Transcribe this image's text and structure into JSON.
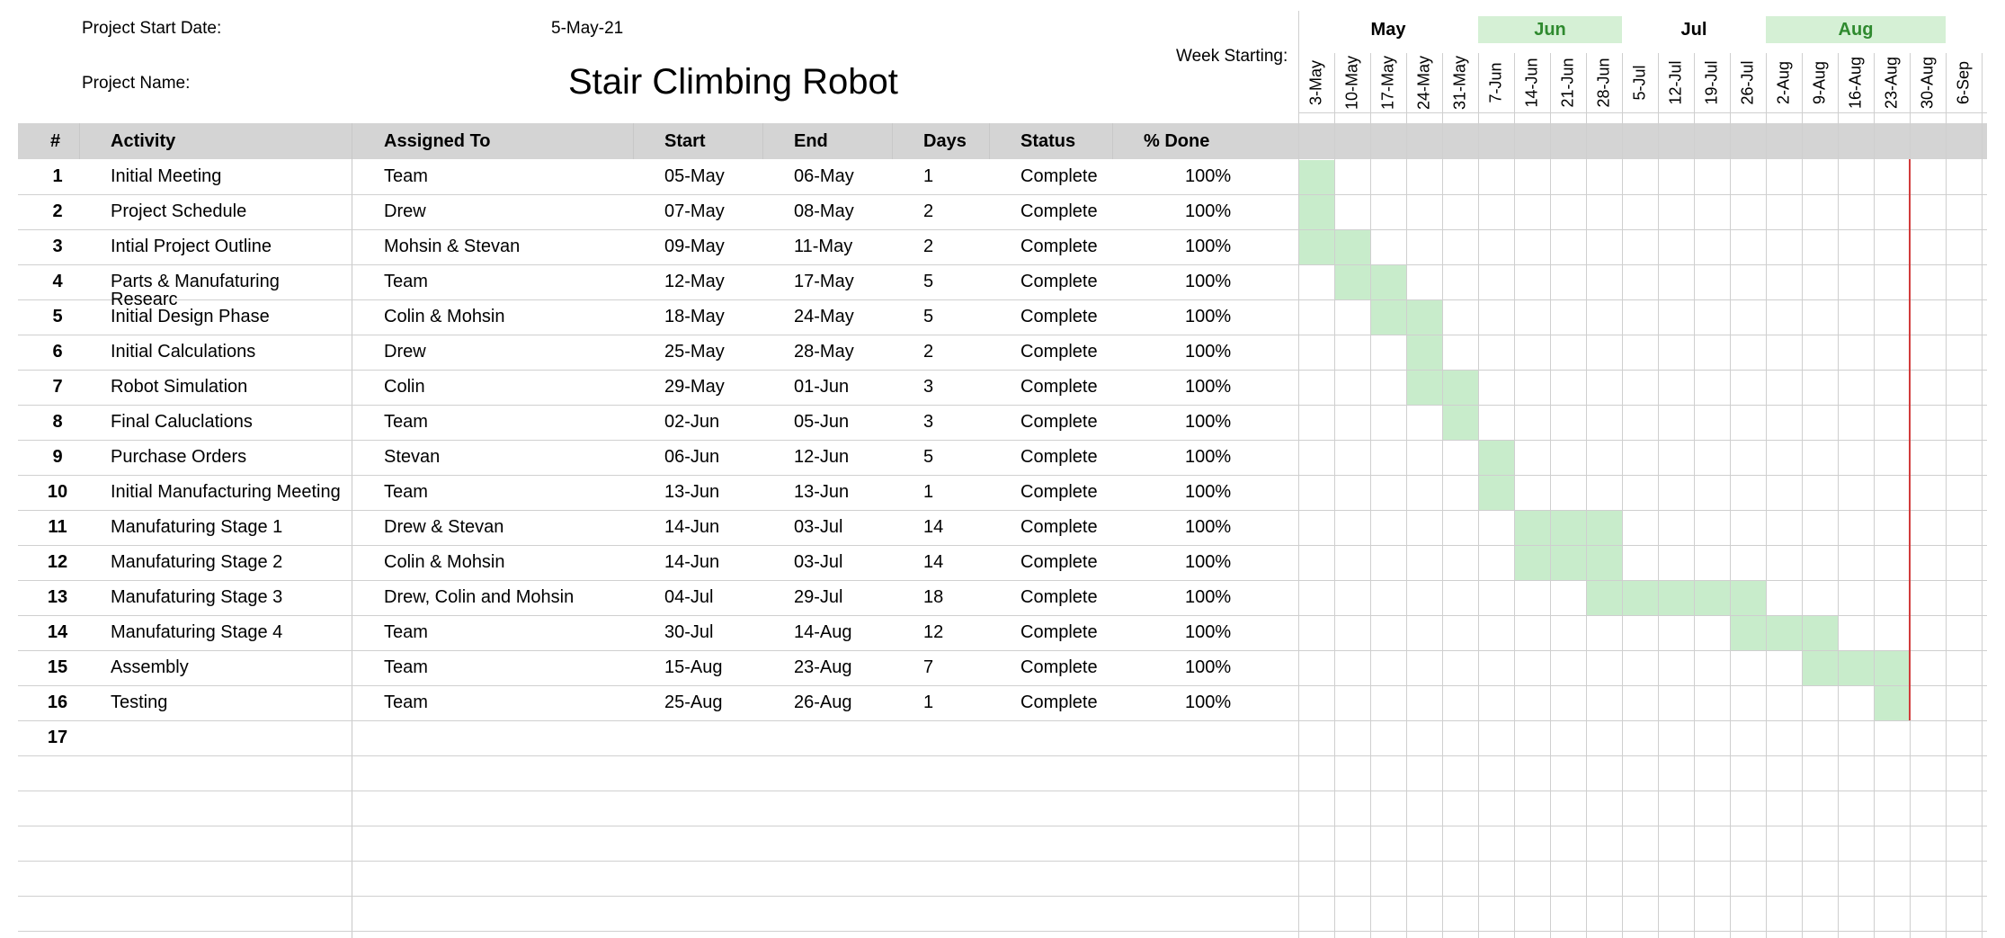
{
  "project": {
    "start_label": "Project Start Date:",
    "start_value": "5-May-21",
    "name_label": "Project Name:",
    "name_value": "Stair Climbing Robot",
    "week_label": "Week Starting:"
  },
  "columns": [
    "#",
    "Activity",
    "Assigned To",
    "Start",
    "End",
    "Days",
    "Status",
    "% Done"
  ],
  "months": [
    {
      "label": "May",
      "highlight": false
    },
    {
      "label": "Jun",
      "highlight": true
    },
    {
      "label": "Jul",
      "highlight": false
    },
    {
      "label": "Aug",
      "highlight": true
    }
  ],
  "weeks": [
    "3-May",
    "10-May",
    "17-May",
    "24-May",
    "31-May",
    "7-Jun",
    "14-Jun",
    "21-Jun",
    "28-Jun",
    "5-Jul",
    "12-Jul",
    "19-Jul",
    "26-Jul",
    "2-Aug",
    "9-Aug",
    "16-Aug",
    "23-Aug",
    "30-Aug",
    "6-Sep"
  ],
  "tasks": [
    {
      "num": "1",
      "activity": "Initial Meeting",
      "assigned": "Team",
      "start": "05-May",
      "end": "06-May",
      "days": "1",
      "status": "Complete",
      "done": "100%",
      "gantt_weeks": [
        "3-May"
      ]
    },
    {
      "num": "2",
      "activity": "Project Schedule",
      "assigned": "Drew",
      "start": "07-May",
      "end": "08-May",
      "days": "2",
      "status": "Complete",
      "done": "100%",
      "gantt_weeks": [
        "3-May"
      ]
    },
    {
      "num": "3",
      "activity": "Intial Project Outline",
      "assigned": "Mohsin & Stevan",
      "start": "09-May",
      "end": "11-May",
      "days": "2",
      "status": "Complete",
      "done": "100%",
      "gantt_weeks": [
        "3-May",
        "10-May"
      ]
    },
    {
      "num": "4",
      "activity": "Parts & Manufaturing Researc",
      "assigned": "Team",
      "start": "12-May",
      "end": "17-May",
      "days": "5",
      "status": "Complete",
      "done": "100%",
      "gantt_weeks": [
        "10-May",
        "17-May"
      ]
    },
    {
      "num": "5",
      "activity": "Initial Design Phase",
      "assigned": "Colin & Mohsin",
      "start": "18-May",
      "end": "24-May",
      "days": "5",
      "status": "Complete",
      "done": "100%",
      "gantt_weeks": [
        "17-May",
        "24-May"
      ]
    },
    {
      "num": "6",
      "activity": "Initial Calculations",
      "assigned": "Drew",
      "start": "25-May",
      "end": "28-May",
      "days": "2",
      "status": "Complete",
      "done": "100%",
      "gantt_weeks": [
        "24-May"
      ]
    },
    {
      "num": "7",
      "activity": "Robot Simulation",
      "assigned": "Colin",
      "start": "29-May",
      "end": "01-Jun",
      "days": "3",
      "status": "Complete",
      "done": "100%",
      "gantt_weeks": [
        "24-May",
        "31-May"
      ]
    },
    {
      "num": "8",
      "activity": "Final Caluclations",
      "assigned": "Team",
      "start": "02-Jun",
      "end": "05-Jun",
      "days": "3",
      "status": "Complete",
      "done": "100%",
      "gantt_weeks": [
        "31-May"
      ]
    },
    {
      "num": "9",
      "activity": "Purchase Orders",
      "assigned": "Stevan",
      "start": "06-Jun",
      "end": "12-Jun",
      "days": "5",
      "status": "Complete",
      "done": "100%",
      "gantt_weeks": [
        "7-Jun"
      ]
    },
    {
      "num": "10",
      "activity": "Initial Manufacturing Meeting",
      "assigned": "Team",
      "start": "13-Jun",
      "end": "13-Jun",
      "days": "1",
      "status": "Complete",
      "done": "100%",
      "gantt_weeks": [
        "7-Jun"
      ]
    },
    {
      "num": "11",
      "activity": "Manufaturing Stage 1",
      "assigned": "Drew & Stevan",
      "start": "14-Jun",
      "end": "03-Jul",
      "days": "14",
      "status": "Complete",
      "done": "100%",
      "gantt_weeks": [
        "14-Jun",
        "21-Jun",
        "28-Jun"
      ]
    },
    {
      "num": "12",
      "activity": "Manufaturing Stage 2",
      "assigned": "Colin & Mohsin",
      "start": "14-Jun",
      "end": "03-Jul",
      "days": "14",
      "status": "Complete",
      "done": "100%",
      "gantt_weeks": [
        "14-Jun",
        "21-Jun",
        "28-Jun"
      ]
    },
    {
      "num": "13",
      "activity": "Manufaturing Stage 3",
      "assigned": "Drew, Colin and Mohsin",
      "start": "04-Jul",
      "end": "29-Jul",
      "days": "18",
      "status": "Complete",
      "done": "100%",
      "gantt_weeks": [
        "28-Jun",
        "5-Jul",
        "12-Jul",
        "19-Jul",
        "26-Jul"
      ]
    },
    {
      "num": "14",
      "activity": "Manufaturing Stage 4",
      "assigned": "Team",
      "start": "30-Jul",
      "end": "14-Aug",
      "days": "12",
      "status": "Complete",
      "done": "100%",
      "gantt_weeks": [
        "26-Jul",
        "2-Aug",
        "9-Aug"
      ]
    },
    {
      "num": "15",
      "activity": "Assembly",
      "assigned": "Team",
      "start": "15-Aug",
      "end": "23-Aug",
      "days": "7",
      "status": "Complete",
      "done": "100%",
      "gantt_weeks": [
        "9-Aug",
        "16-Aug",
        "23-Aug"
      ]
    },
    {
      "num": "16",
      "activity": "Testing",
      "assigned": "Team",
      "start": "25-Aug",
      "end": "26-Aug",
      "days": "1",
      "status": "Complete",
      "done": "100%",
      "gantt_weeks": [
        "23-Aug"
      ]
    },
    {
      "num": "17",
      "activity": "",
      "assigned": "",
      "start": "",
      "end": "",
      "days": "",
      "status": "",
      "done": "",
      "gantt_weeks": []
    }
  ],
  "extra_blank_rows": 5,
  "today_week": "23-Aug",
  "colors": {
    "header_band": "#d4d4d4",
    "gantt_fill": "#c8eccb",
    "month_highlight": "#d5f0d5",
    "month_highlight_text": "#2f8a2f",
    "today_line": "#d23c3c"
  }
}
